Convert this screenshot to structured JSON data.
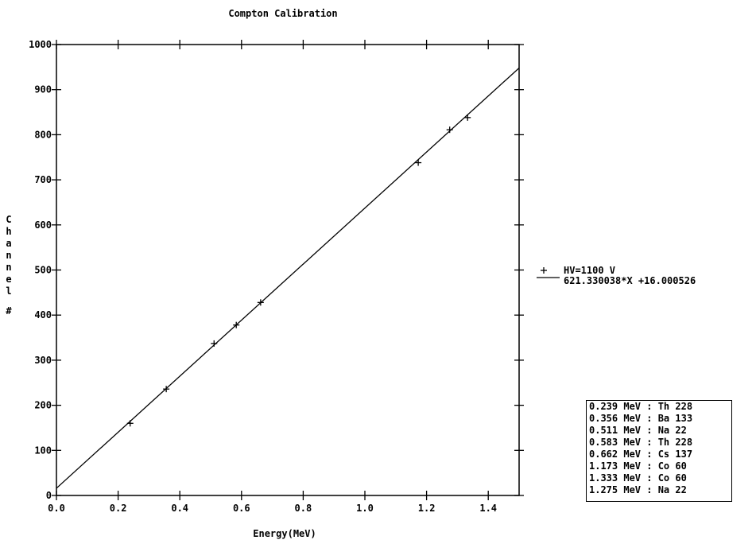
{
  "chart_data": {
    "type": "scatter",
    "title": "Compton Calibration",
    "xlabel": "Energy(MeV)",
    "ylabel": "Channel #",
    "xlim": [
      0.0,
      1.5
    ],
    "ylim": [
      0,
      1000
    ],
    "xticks": [
      "0.0",
      "0.2",
      "0.4",
      "0.6",
      "0.8",
      "1.0",
      "1.2",
      "1.4"
    ],
    "yticks": [
      "0",
      "100",
      "200",
      "300",
      "400",
      "500",
      "600",
      "700",
      "800",
      "900",
      "1000"
    ],
    "grid": false,
    "legend_position": "right",
    "series": [
      {
        "name": "HV=1100 V",
        "marker": "+",
        "x": [
          0.239,
          0.356,
          0.511,
          0.583,
          0.662,
          1.173,
          1.275,
          1.333
        ],
        "y": [
          160,
          236,
          337,
          378,
          428,
          738,
          811,
          838
        ]
      },
      {
        "name": "621.330038*X +16.000526",
        "line": true,
        "slope": 621.330038,
        "intercept": 16.000526,
        "x": [
          0.0,
          1.5
        ]
      }
    ]
  },
  "reference_table": [
    "0.239 MeV : Th 228",
    "0.356 MeV : Ba 133",
    "0.511 MeV : Na 22",
    "0.583 MeV : Th 228",
    "0.662 MeV : Cs 137",
    "1.173 MeV : Co 60",
    "1.333 MeV : Co 60",
    "1.275 MeV : Na 22"
  ]
}
